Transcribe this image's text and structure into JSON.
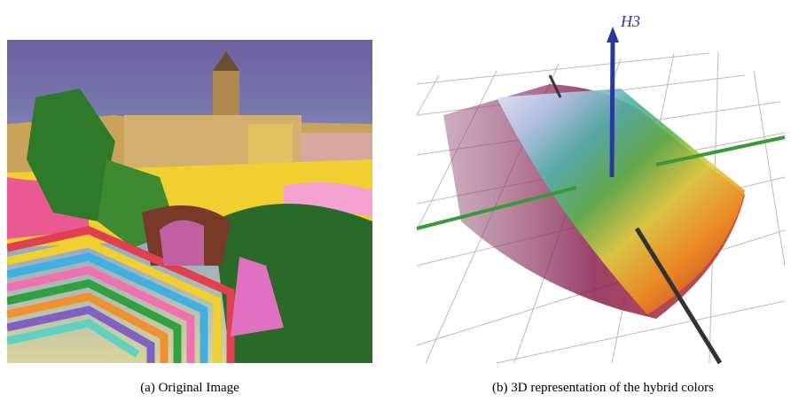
{
  "figures": [
    {
      "caption": "(a) Original Image"
    },
    {
      "caption": "(b) 3D representation of the hybrid colors",
      "axis_label": "H3"
    }
  ]
}
